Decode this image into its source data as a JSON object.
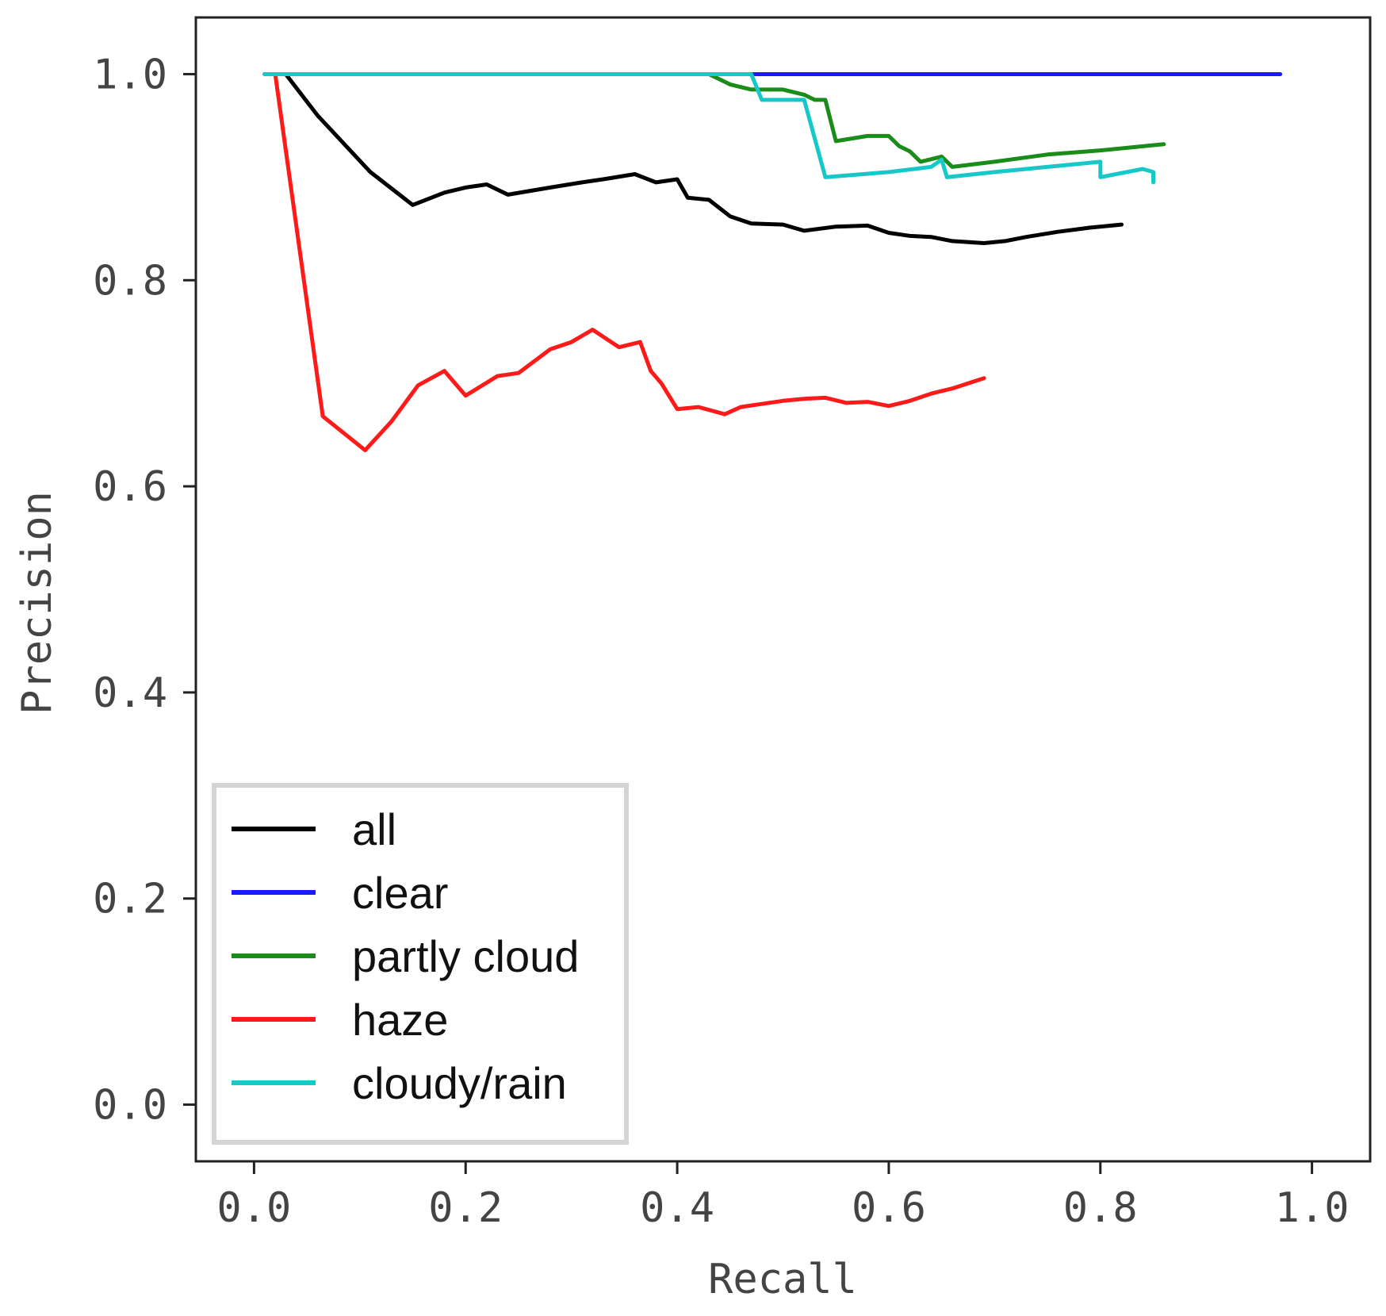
{
  "chart_data": {
    "type": "line",
    "title": "",
    "xlabel": "Recall",
    "ylabel": "Precision",
    "xlim": [
      -0.055,
      1.055
    ],
    "ylim": [
      -0.055,
      1.055
    ],
    "xticks": [
      "0.0",
      "0.2",
      "0.4",
      "0.6",
      "0.8",
      "1.0"
    ],
    "yticks": [
      "0.0",
      "0.2",
      "0.4",
      "0.6",
      "0.8",
      "1.0"
    ],
    "grid": false,
    "legend_position": "lower-left",
    "series": [
      {
        "name": "all",
        "color": "#000000",
        "points": [
          [
            0.03,
            1.0
          ],
          [
            0.06,
            0.96
          ],
          [
            0.11,
            0.905
          ],
          [
            0.15,
            0.873
          ],
          [
            0.18,
            0.885
          ],
          [
            0.2,
            0.89
          ],
          [
            0.22,
            0.893
          ],
          [
            0.24,
            0.883
          ],
          [
            0.28,
            0.89
          ],
          [
            0.31,
            0.895
          ],
          [
            0.33,
            0.898
          ],
          [
            0.36,
            0.903
          ],
          [
            0.38,
            0.895
          ],
          [
            0.4,
            0.898
          ],
          [
            0.41,
            0.88
          ],
          [
            0.43,
            0.878
          ],
          [
            0.45,
            0.862
          ],
          [
            0.47,
            0.855
          ],
          [
            0.5,
            0.854
          ],
          [
            0.52,
            0.848
          ],
          [
            0.55,
            0.852
          ],
          [
            0.58,
            0.853
          ],
          [
            0.6,
            0.846
          ],
          [
            0.62,
            0.843
          ],
          [
            0.64,
            0.842
          ],
          [
            0.66,
            0.838
          ],
          [
            0.69,
            0.836
          ],
          [
            0.71,
            0.838
          ],
          [
            0.73,
            0.842
          ],
          [
            0.76,
            0.847
          ],
          [
            0.79,
            0.851
          ],
          [
            0.82,
            0.854
          ]
        ]
      },
      {
        "name": "clear",
        "color": "#1a1aff",
        "points": [
          [
            0.01,
            1.0
          ],
          [
            0.04,
            1.0
          ],
          [
            0.2,
            1.0
          ],
          [
            0.4,
            1.0
          ],
          [
            0.6,
            1.0
          ],
          [
            0.8,
            1.0
          ],
          [
            0.97,
            1.0
          ]
        ]
      },
      {
        "name": "partly cloud",
        "color": "#1a8c1a",
        "points": [
          [
            0.01,
            1.0
          ],
          [
            0.43,
            1.0
          ],
          [
            0.45,
            0.99
          ],
          [
            0.47,
            0.985
          ],
          [
            0.5,
            0.985
          ],
          [
            0.52,
            0.98
          ],
          [
            0.53,
            0.975
          ],
          [
            0.54,
            0.975
          ],
          [
            0.55,
            0.935
          ],
          [
            0.58,
            0.94
          ],
          [
            0.6,
            0.94
          ],
          [
            0.61,
            0.93
          ],
          [
            0.62,
            0.925
          ],
          [
            0.63,
            0.915
          ],
          [
            0.65,
            0.92
          ],
          [
            0.66,
            0.91
          ],
          [
            0.7,
            0.915
          ],
          [
            0.75,
            0.922
          ],
          [
            0.8,
            0.926
          ],
          [
            0.86,
            0.932
          ]
        ]
      },
      {
        "name": "haze",
        "color": "#ff1a1a",
        "points": [
          [
            0.02,
            1.0
          ],
          [
            0.065,
            0.668
          ],
          [
            0.105,
            0.635
          ],
          [
            0.13,
            0.663
          ],
          [
            0.155,
            0.698
          ],
          [
            0.18,
            0.712
          ],
          [
            0.2,
            0.688
          ],
          [
            0.23,
            0.707
          ],
          [
            0.25,
            0.71
          ],
          [
            0.28,
            0.733
          ],
          [
            0.3,
            0.74
          ],
          [
            0.32,
            0.752
          ],
          [
            0.345,
            0.735
          ],
          [
            0.365,
            0.74
          ],
          [
            0.375,
            0.712
          ],
          [
            0.385,
            0.7
          ],
          [
            0.4,
            0.675
          ],
          [
            0.42,
            0.677
          ],
          [
            0.445,
            0.67
          ],
          [
            0.46,
            0.677
          ],
          [
            0.48,
            0.68
          ],
          [
            0.5,
            0.683
          ],
          [
            0.52,
            0.685
          ],
          [
            0.54,
            0.686
          ],
          [
            0.56,
            0.681
          ],
          [
            0.58,
            0.682
          ],
          [
            0.6,
            0.678
          ],
          [
            0.62,
            0.683
          ],
          [
            0.64,
            0.69
          ],
          [
            0.66,
            0.695
          ],
          [
            0.69,
            0.705
          ]
        ]
      },
      {
        "name": "cloudy/rain",
        "color": "#17c8c8",
        "points": [
          [
            0.01,
            1.0
          ],
          [
            0.47,
            1.0
          ],
          [
            0.48,
            0.975
          ],
          [
            0.5,
            0.975
          ],
          [
            0.52,
            0.975
          ],
          [
            0.54,
            0.9
          ],
          [
            0.6,
            0.905
          ],
          [
            0.64,
            0.91
          ],
          [
            0.65,
            0.917
          ],
          [
            0.655,
            0.9
          ],
          [
            0.7,
            0.905
          ],
          [
            0.75,
            0.91
          ],
          [
            0.78,
            0.913
          ],
          [
            0.8,
            0.915
          ],
          [
            0.8,
            0.9
          ],
          [
            0.84,
            0.908
          ],
          [
            0.85,
            0.905
          ],
          [
            0.85,
            0.895
          ]
        ]
      }
    ]
  }
}
